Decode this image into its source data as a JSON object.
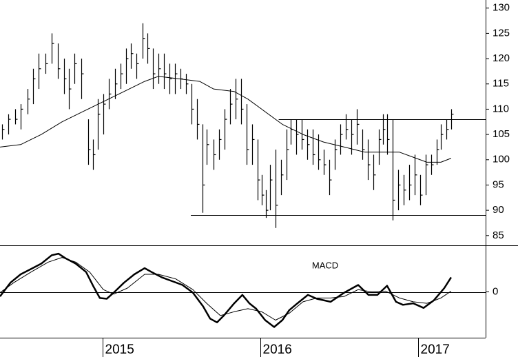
{
  "chart_data": [
    {
      "type": "ohlc",
      "xlim": [
        2014.35,
        2017.429
      ],
      "ylim": [
        83.2,
        131.6
      ],
      "yticks": [
        85,
        90,
        95,
        100,
        105,
        110,
        115,
        120,
        125,
        130
      ],
      "color": "#000000",
      "x": [
        2014.363,
        2014.402,
        2014.446,
        2014.481,
        2014.525,
        2014.56,
        2014.595,
        2014.638,
        2014.678,
        2014.717,
        2014.756,
        2014.787,
        2014.822,
        2014.865,
        2014.909,
        2014.94,
        2014.97,
        2015.005,
        2015.04,
        2015.079,
        2015.114,
        2015.149,
        2015.18,
        2015.215,
        2015.254,
        2015.284,
        2015.319,
        2015.354,
        2015.389,
        2015.424,
        2015.459,
        2015.494,
        2015.529,
        2015.564,
        2015.599,
        2015.634,
        2015.66,
        2015.704,
        2015.739,
        2015.774,
        2015.809,
        2015.843,
        2015.878,
        2015.913,
        2015.948,
        2015.983,
        2016.009,
        2016.036,
        2016.062,
        2016.097,
        2016.132,
        2016.167,
        2016.193,
        2016.228,
        2016.263,
        2016.298,
        2016.333,
        2016.367,
        2016.402,
        2016.437,
        2016.472,
        2016.507,
        2016.542,
        2016.577,
        2016.612,
        2016.647,
        2016.682,
        2016.717,
        2016.752,
        2016.778,
        2016.804,
        2016.839,
        2016.874,
        2016.909,
        2016.944,
        2016.979,
        2017.014,
        2017.049,
        2017.084,
        2017.119,
        2017.145,
        2017.18,
        2017.21
      ],
      "high": [
        107,
        109,
        110,
        111,
        114,
        118,
        121,
        121,
        125,
        123,
        120,
        118,
        121,
        120,
        108,
        104,
        112,
        113,
        116,
        118,
        119,
        122,
        123,
        121,
        127,
        125,
        122,
        121,
        121,
        119,
        119,
        118,
        117,
        115,
        112,
        107,
        106,
        104,
        106,
        110,
        114,
        116,
        116,
        111,
        107,
        104,
        97,
        94,
        99,
        102,
        100,
        106,
        108,
        108,
        108,
        106,
        106,
        105,
        102,
        100,
        104,
        107,
        109,
        108,
        110,
        106,
        104,
        101,
        106,
        109,
        109,
        108,
        98,
        97,
        99,
        101,
        97,
        101,
        101,
        104,
        107,
        108,
        110
      ],
      "low": [
        104,
        105,
        107,
        106,
        109,
        111,
        114,
        117,
        119,
        116,
        113,
        110,
        115,
        112,
        99,
        98,
        102,
        105,
        110,
        112,
        114,
        115,
        118,
        116,
        120,
        119,
        114,
        115,
        114,
        113,
        113,
        114,
        113,
        107,
        104,
        89.5,
        99,
        98,
        100,
        102,
        107,
        108,
        107,
        99,
        99,
        92,
        91,
        88.5,
        90,
        86.5,
        93,
        96,
        103,
        101,
        102,
        100,
        99,
        98,
        97,
        93,
        98,
        101,
        104,
        101,
        103,
        100,
        96,
        94,
        99,
        103,
        101,
        88,
        90,
        91,
        92,
        93,
        91,
        93,
        97,
        99,
        102,
        104,
        106
      ],
      "close": [
        106,
        108,
        108,
        110,
        112,
        116,
        118,
        119,
        123,
        118,
        116,
        114,
        119,
        117,
        102,
        101,
        109,
        111,
        113,
        115,
        117,
        120,
        121,
        119,
        124,
        122,
        117,
        118,
        117,
        116,
        117,
        116,
        115,
        110,
        107,
        95,
        103,
        101,
        104,
        108,
        111,
        112,
        110,
        102,
        104,
        96,
        93,
        90,
        96,
        91,
        97,
        102,
        106,
        105,
        104,
        103,
        101,
        100,
        99,
        96,
        102,
        105,
        106,
        105,
        107,
        102,
        99,
        97,
        104,
        106,
        104,
        92,
        95,
        94,
        95,
        97,
        93,
        99,
        99,
        102,
        105,
        106,
        109
      ],
      "moving_average": {
        "x": [
          2014.35,
          2014.481,
          2014.612,
          2014.743,
          2014.874,
          2015.005,
          2015.136,
          2015.267,
          2015.354,
          2015.485,
          2015.616,
          2015.704,
          2015.835,
          2015.922,
          2016.009,
          2016.14,
          2016.271,
          2016.402,
          2016.533,
          2016.664,
          2016.795,
          2016.883,
          2016.97,
          2017.057,
          2017.145,
          2017.21
        ],
        "values": [
          102.5,
          103,
          105,
          107.5,
          109.5,
          111.5,
          113.5,
          115.5,
          116.5,
          116,
          115.5,
          114,
          113.5,
          112,
          110,
          107,
          105,
          103.5,
          102.5,
          101.5,
          101.5,
          101.5,
          100.5,
          99.5,
          99.5,
          100.3
        ]
      },
      "hlines": [
        {
          "value": 108,
          "x_start": 2016.117
        },
        {
          "value": 89,
          "x_start": 2015.56
        }
      ]
    },
    {
      "type": "line",
      "title": "MACD",
      "xlim": [
        2014.35,
        2017.429
      ],
      "xticks": [
        2015,
        2016,
        2017
      ],
      "ylim": [
        -6,
        6
      ],
      "yticks": [
        0
      ],
      "series": [
        {
          "color": "#000000",
          "width": 2.5,
          "x": [
            2014.35,
            2014.416,
            2014.481,
            2014.547,
            2014.612,
            2014.678,
            2014.721,
            2014.765,
            2014.83,
            2014.896,
            2014.94,
            2014.983,
            2015.027,
            2015.071,
            2015.136,
            2015.202,
            2015.267,
            2015.311,
            2015.376,
            2015.442,
            2015.507,
            2015.573,
            2015.638,
            2015.682,
            2015.726,
            2015.769,
            2015.835,
            2015.887,
            2015.931,
            2015.974,
            2016.031,
            2016.088,
            2016.14,
            2016.184,
            2016.236,
            2016.302,
            2016.359,
            2016.446,
            2016.533,
            2016.621,
            2016.686,
            2016.743,
            2016.804,
            2016.861,
            2016.905,
            2016.97,
            2017.036,
            2017.101,
            2017.167,
            2017.21
          ],
          "values": [
            -0.6,
            1.2,
            2.3,
            3.0,
            3.7,
            4.8,
            5.0,
            4.4,
            3.7,
            2.6,
            0.8,
            -0.8,
            -0.9,
            -0.1,
            1.2,
            2.3,
            3.1,
            2.6,
            1.9,
            1.4,
            0.9,
            -0.1,
            -1.9,
            -3.5,
            -4.0,
            -3.1,
            -1.5,
            -0.4,
            -1.5,
            -2.2,
            -3.7,
            -4.6,
            -3.7,
            -2.4,
            -1.5,
            -0.4,
            -0.9,
            -1.3,
            -0.1,
            0.9,
            -0.4,
            -0.4,
            0.8,
            -1.3,
            -1.7,
            -1.5,
            -2.1,
            -1.1,
            0.5,
            1.9
          ]
        },
        {
          "color": "#000000",
          "width": 1,
          "x": [
            2014.35,
            2014.437,
            2014.547,
            2014.656,
            2014.743,
            2014.83,
            2014.918,
            2015.005,
            2015.071,
            2015.158,
            2015.267,
            2015.354,
            2015.464,
            2015.573,
            2015.66,
            2015.747,
            2015.835,
            2015.922,
            2016.009,
            2016.097,
            2016.184,
            2016.271,
            2016.359,
            2016.446,
            2016.533,
            2016.621,
            2016.708,
            2016.795,
            2016.883,
            2016.97,
            2017.057,
            2017.145,
            2017.21
          ],
          "values": [
            -0.1,
            1.2,
            2.6,
            3.9,
            4.5,
            3.9,
            2.6,
            0.3,
            -0.3,
            0.5,
            2.3,
            2.3,
            1.7,
            0.3,
            -1.5,
            -3.1,
            -2.6,
            -2.2,
            -2.6,
            -3.7,
            -2.8,
            -1.3,
            -0.8,
            -0.8,
            -0.6,
            0.3,
            0.0,
            0.1,
            -0.8,
            -1.3,
            -1.5,
            -0.8,
            0.1
          ]
        }
      ]
    }
  ]
}
